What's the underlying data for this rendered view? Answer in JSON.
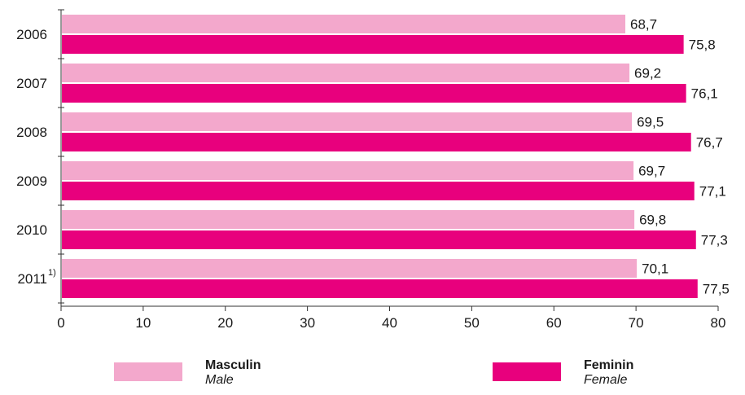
{
  "chart_data": {
    "type": "bar",
    "orientation": "horizontal",
    "categories": [
      "2006",
      "2007",
      "2008",
      "2009",
      "2010",
      "2011"
    ],
    "category_superscripts": [
      "",
      "",
      "",
      "",
      "",
      "1)"
    ],
    "series": [
      {
        "name": "Masculin",
        "name_en": "Male",
        "values": [
          68.7,
          69.2,
          69.5,
          69.7,
          69.8,
          70.1
        ],
        "labels": [
          "68,7",
          "69,2",
          "69,5",
          "69,7",
          "69,8",
          "70,1"
        ],
        "color": "#f3a8cc"
      },
      {
        "name": "Feminin",
        "name_en": "Female",
        "values": [
          75.8,
          76.1,
          76.7,
          77.1,
          77.3,
          77.5
        ],
        "labels": [
          "75,8",
          "76,1",
          "76,7",
          "77,1",
          "77,3",
          "77,5"
        ],
        "color": "#e8007d"
      }
    ],
    "xlim": [
      0,
      80
    ],
    "xticks": [
      "0",
      "10",
      "20",
      "30",
      "40",
      "50",
      "60",
      "70",
      "80"
    ],
    "grid": false,
    "legend_position": "bottom"
  },
  "legend": {
    "male_title": "Masculin",
    "male_sub": "Male",
    "female_title": "Feminin",
    "female_sub": "Female"
  }
}
